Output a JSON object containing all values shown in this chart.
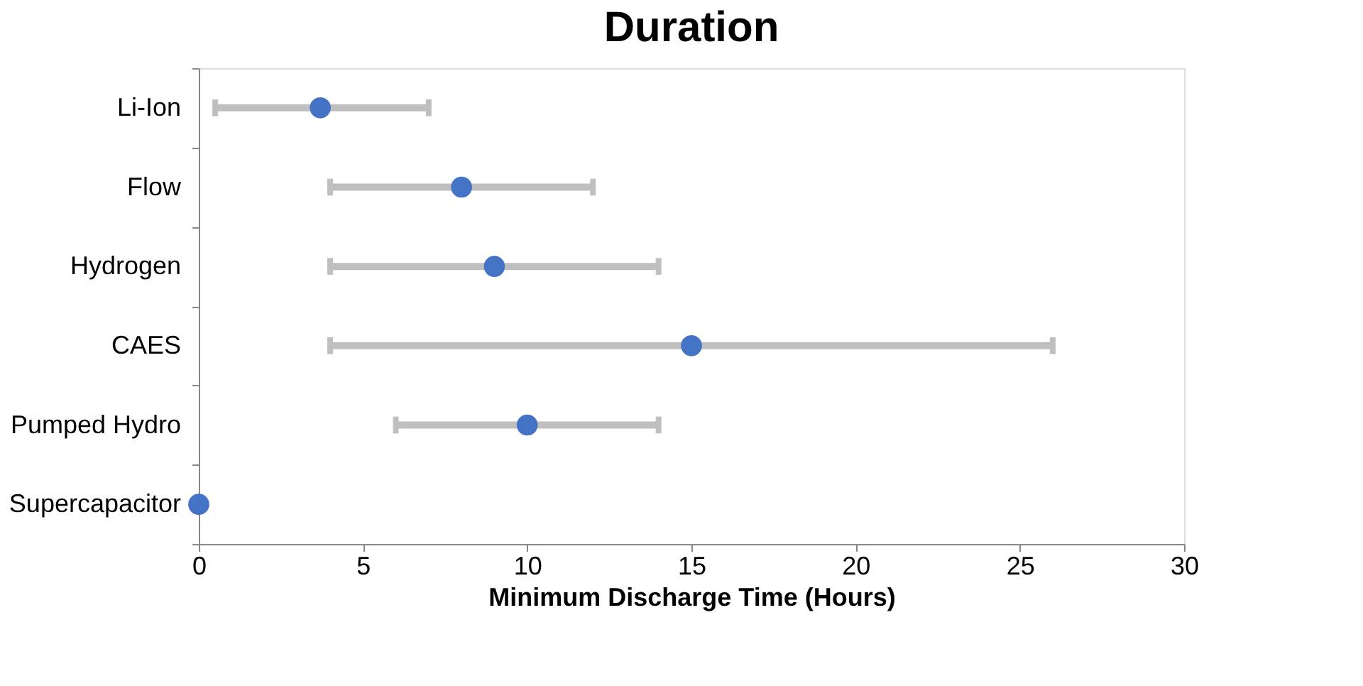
{
  "chart_data": {
    "type": "scatter",
    "title": "Duration",
    "xlabel": "Minimum Discharge Time (Hours)",
    "orientation": "horizontal",
    "categories": [
      "Li-Ion",
      "Flow",
      "Hydrogen",
      "CAES",
      "Pumped Hydro",
      "Supercapacitor"
    ],
    "series": [
      {
        "color": "#4472c4",
        "values": [
          3.7,
          8,
          9,
          15,
          10,
          0
        ],
        "errors": [
          [
            0.5,
            7
          ],
          [
            4,
            12
          ],
          [
            4,
            14
          ],
          [
            4,
            26
          ],
          [
            6,
            14
          ],
          null
        ]
      }
    ],
    "xlim": [
      0,
      30
    ],
    "xticks": [
      0,
      5,
      10,
      15,
      20,
      25,
      30
    ],
    "grid": false,
    "legend": false,
    "marker": "circle"
  }
}
